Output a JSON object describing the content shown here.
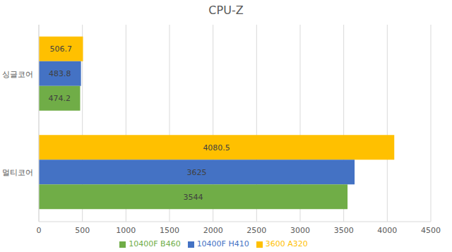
{
  "chart_data": {
    "type": "bar",
    "title": "CPU-Z",
    "orientation": "horizontal",
    "categories": [
      "싱글코어",
      "멀티코어"
    ],
    "series": [
      {
        "name": "3600 A320",
        "color": "#ffc000",
        "values": [
          506.7,
          4080.5
        ]
      },
      {
        "name": "10400F H410",
        "color": "#4472c4",
        "values": [
          483.8,
          3625
        ]
      },
      {
        "name": "10400F B460",
        "color": "#70ad47",
        "values": [
          474.2,
          3544
        ]
      }
    ],
    "xlim": [
      0,
      4500
    ],
    "xticks": [
      0,
      500,
      1000,
      1500,
      2000,
      2500,
      3000,
      3500,
      4000,
      4500
    ],
    "grid": true,
    "legend": "bottom",
    "data_labels": true
  }
}
